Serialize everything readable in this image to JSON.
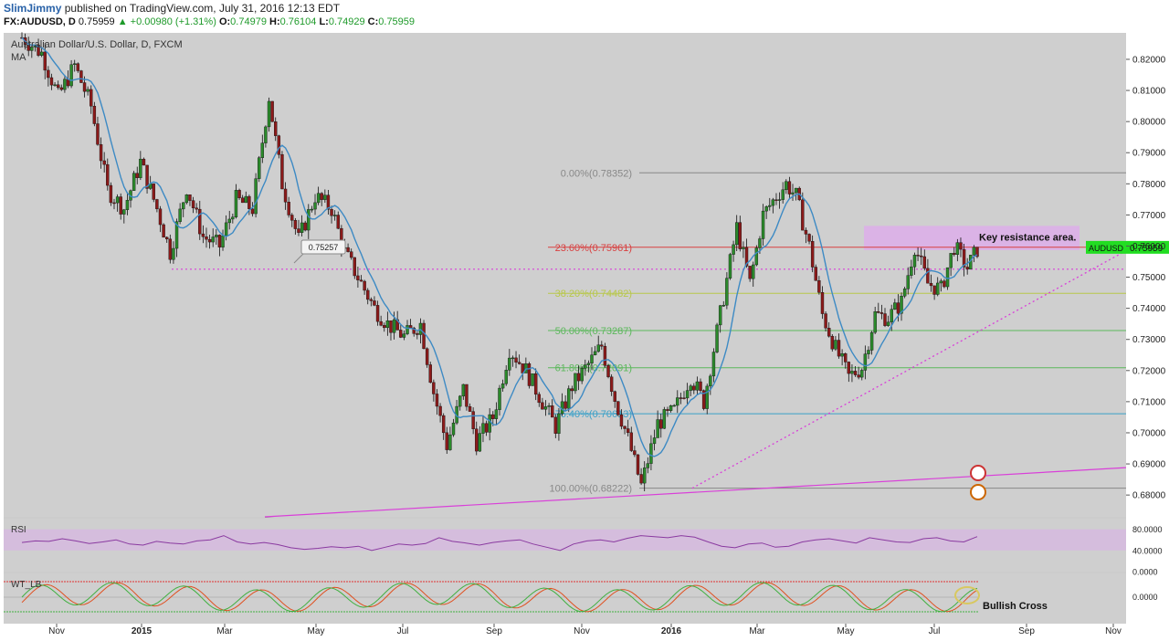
{
  "header": {
    "author": "SlimJimmy",
    "published": "published on TradingView.com, July 31, 2016 12:13 EDT",
    "symbol": "FX:AUDUSD, D",
    "last": "0.75959",
    "change": "▲ +0.00980 (+1.31%)",
    "o_label": "O:",
    "o_value": "0.74979",
    "h_label": "H:",
    "h_value": "0.76104",
    "l_label": "L:",
    "l_value": "0.74929",
    "c_label": "C:",
    "c_value": "0.75959"
  },
  "colors": {
    "background": "#cfcfcf",
    "bull_candle": "#2b8a2b",
    "bear_candle": "#8b1a1a",
    "ma_line": "#3d8ac4",
    "fib_gray": "#888888",
    "fib_red": "#d84040",
    "fib_yellow": "#b8c84a",
    "fib_green": "#5cb85c",
    "fib_blue": "#3aa0c8",
    "trend_magenta": "#d940d9",
    "resistance_box": "#dbb3e6",
    "price_tag": "#22dd22",
    "rsi_line": "#8a3aa0",
    "rsi_band": "#d6b8e0",
    "wt_red": "#e05020",
    "wt_green": "#40b040",
    "wt_blue": "#6080e0"
  },
  "chart_data": {
    "type": "candlestick",
    "title": "Australian Dollar/U.S. Dollar, D, FXCM",
    "indicator_label": "MA",
    "y_axis": {
      "range": [
        0.673,
        0.8285
      ],
      "ticks": [
        "0.82000",
        "0.81000",
        "0.80000",
        "0.79000",
        "0.78000",
        "0.77000",
        "0.76000",
        "0.75000",
        "0.74000",
        "0.73000",
        "0.72000",
        "0.71000",
        "0.70000",
        "0.69000",
        "0.68000"
      ]
    },
    "x_axis": {
      "tick_labels": [
        "Nov",
        "2015",
        "Mar",
        "May",
        "Jul",
        "Sep",
        "Nov",
        "2016",
        "Mar",
        "May",
        "Jul",
        "Sep",
        "Nov"
      ]
    },
    "price_path": [
      [
        0,
        0.827
      ],
      [
        12,
        0.822
      ],
      [
        22,
        0.808
      ],
      [
        32,
        0.818
      ],
      [
        42,
        0.805
      ],
      [
        52,
        0.778
      ],
      [
        62,
        0.772
      ],
      [
        72,
        0.787
      ],
      [
        82,
        0.772
      ],
      [
        90,
        0.758
      ],
      [
        100,
        0.779
      ],
      [
        110,
        0.763
      ],
      [
        120,
        0.76
      ],
      [
        130,
        0.775
      ],
      [
        140,
        0.772
      ],
      [
        150,
        0.808
      ],
      [
        158,
        0.78
      ],
      [
        168,
        0.762
      ],
      [
        178,
        0.776
      ],
      [
        188,
        0.772
      ],
      [
        196,
        0.758
      ],
      [
        206,
        0.748
      ],
      [
        214,
        0.74
      ],
      [
        222,
        0.735
      ],
      [
        232,
        0.731
      ],
      [
        242,
        0.735
      ],
      [
        250,
        0.713
      ],
      [
        258,
        0.696
      ],
      [
        268,
        0.714
      ],
      [
        276,
        0.697
      ],
      [
        286,
        0.705
      ],
      [
        296,
        0.727
      ],
      [
        306,
        0.72
      ],
      [
        314,
        0.712
      ],
      [
        324,
        0.702
      ],
      [
        334,
        0.715
      ],
      [
        344,
        0.722
      ],
      [
        352,
        0.728
      ],
      [
        360,
        0.711
      ],
      [
        368,
        0.698
      ],
      [
        376,
        0.683
      ],
      [
        386,
        0.703
      ],
      [
        396,
        0.707
      ],
      [
        406,
        0.718
      ],
      [
        414,
        0.71
      ],
      [
        424,
        0.738
      ],
      [
        434,
        0.766
      ],
      [
        442,
        0.748
      ],
      [
        450,
        0.77
      ],
      [
        458,
        0.776
      ],
      [
        464,
        0.78
      ],
      [
        470,
        0.776
      ],
      [
        478,
        0.76
      ],
      [
        486,
        0.738
      ],
      [
        494,
        0.727
      ],
      [
        502,
        0.718
      ],
      [
        510,
        0.721
      ],
      [
        518,
        0.738
      ],
      [
        526,
        0.737
      ],
      [
        534,
        0.742
      ],
      [
        542,
        0.76
      ],
      [
        550,
        0.748
      ],
      [
        558,
        0.746
      ],
      [
        566,
        0.76
      ],
      [
        574,
        0.753
      ],
      [
        580,
        0.759
      ]
    ],
    "moving_average": "MA",
    "fibonacci": [
      {
        "label": "0.00%(0.78352)",
        "value": 0.78352
      },
      {
        "label": "23.60%(0.75961)",
        "value": 0.75961
      },
      {
        "label": "38.20%(0.74482)",
        "value": 0.74482
      },
      {
        "label": "50.00%(0.73287)",
        "value": 0.73287
      },
      {
        "label": "61.80%(0.72091)",
        "value": 0.72091
      },
      {
        "label": "76.40%(0.70613)",
        "value": 0.70613
      },
      {
        "label": "100.00%(0.68222)",
        "value": 0.68222
      }
    ],
    "horizontal_level": {
      "value": 0.75257,
      "label": "0.75257"
    },
    "resistance_zone": {
      "from": 0.7587,
      "to": 0.7665,
      "label": "Key resistance area."
    },
    "current_price": {
      "symbol": "AUDUSD",
      "value": "0.75959"
    },
    "rsi": {
      "name": "RSI",
      "ticks": [
        "80.0000",
        "40.0000",
        "0.0000"
      ],
      "range": [
        0,
        100
      ],
      "band": [
        40,
        80
      ],
      "values": [
        55,
        58,
        57,
        62,
        58,
        53,
        56,
        60,
        52,
        50,
        57,
        54,
        52,
        58,
        60,
        68,
        56,
        52,
        55,
        51,
        45,
        42,
        44,
        47,
        45,
        48,
        40,
        46,
        52,
        50,
        53,
        64,
        57,
        54,
        50,
        55,
        58,
        60,
        52,
        46,
        40,
        52,
        58,
        60,
        56,
        63,
        68,
        66,
        64,
        68,
        65,
        56,
        48,
        45,
        52,
        54,
        46,
        48,
        56,
        60,
        62,
        58,
        54,
        64,
        60,
        56,
        55,
        62,
        64,
        58,
        56,
        66
      ]
    },
    "wt": {
      "name": "WT_LB",
      "ticks": [
        "0.0000"
      ],
      "annotation": "Bullish Cross"
    }
  }
}
